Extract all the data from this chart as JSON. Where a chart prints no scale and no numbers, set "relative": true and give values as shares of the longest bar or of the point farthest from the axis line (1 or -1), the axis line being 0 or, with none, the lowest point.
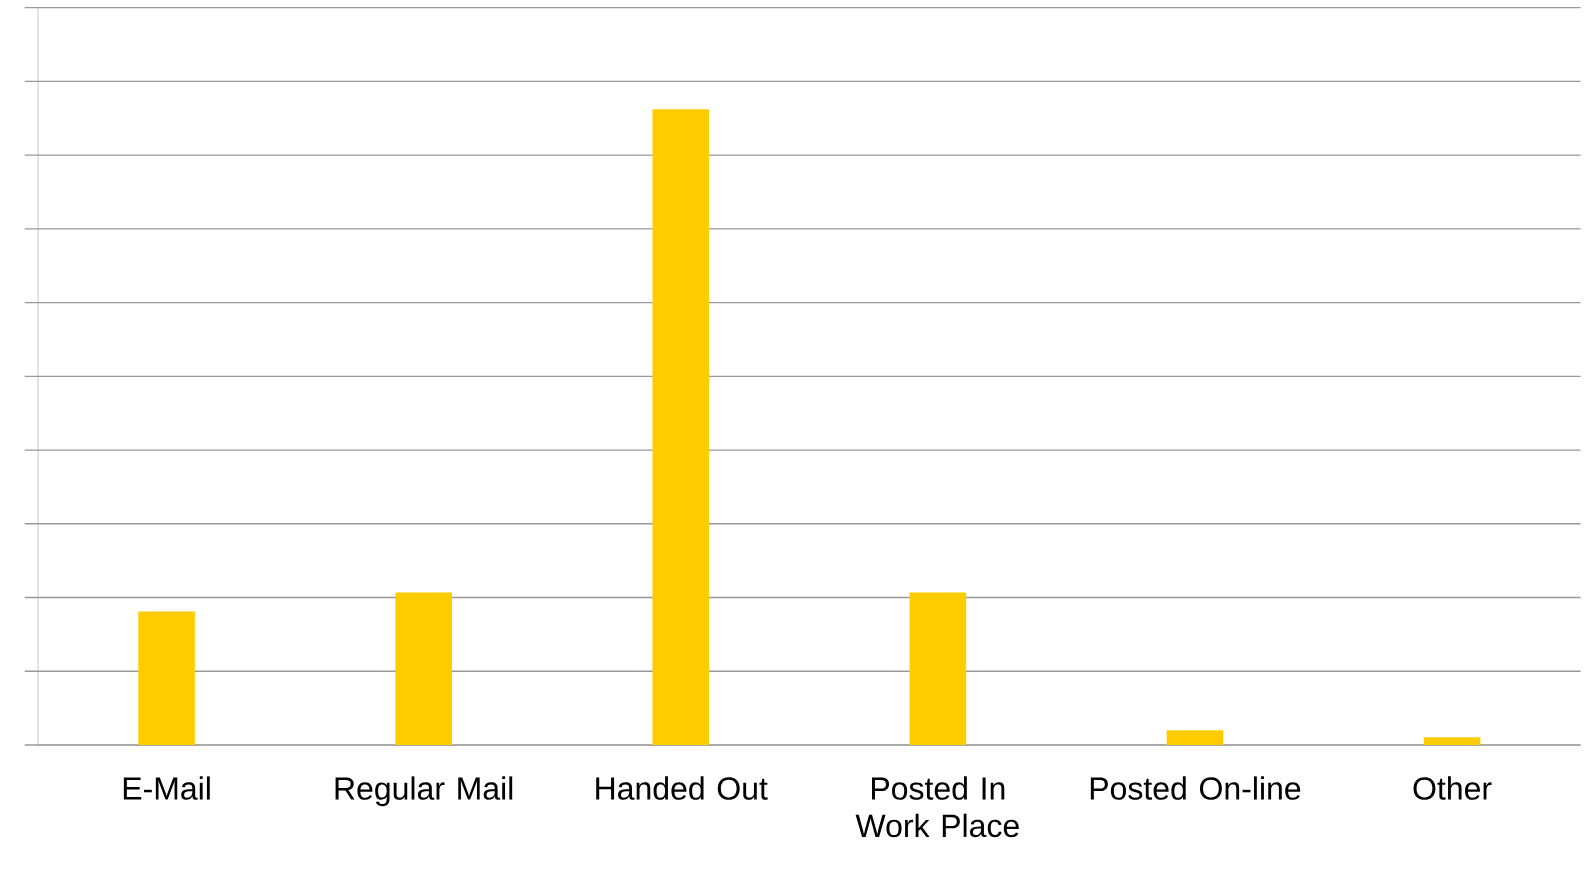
{
  "chart_data": {
    "type": "bar",
    "relative": true,
    "grid": "y",
    "color": "#ffcc00",
    "categories": [
      "E-Mail",
      "Regular Mail",
      "Handed Out",
      "Posted In Work Place",
      "Posted On-line",
      "Other"
    ],
    "values": [
      0.21,
      0.24,
      1,
      0.24,
      0.023,
      0.012
    ]
  }
}
